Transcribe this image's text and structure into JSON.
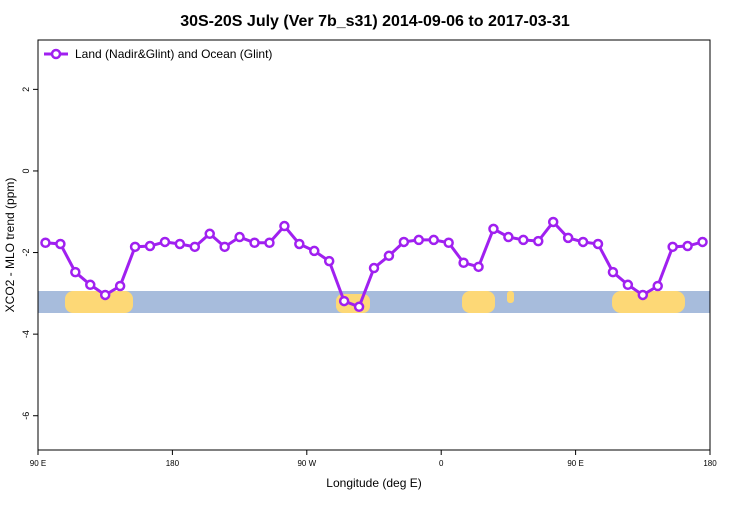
{
  "chart_data": {
    "type": "line",
    "title": "30S-20S July (Ver 7b_s31)   2014-09-06 to 2017-03-31",
    "x_label": "Longitude (deg E)",
    "y_label": "XCO2 - MLO trend (ppm)",
    "x": [
      95,
      105,
      115,
      125,
      135,
      145,
      155,
      165,
      175,
      185,
      195,
      205,
      215,
      225,
      235,
      245,
      255,
      265,
      275,
      285,
      295,
      305,
      315,
      325,
      335,
      345,
      355,
      365,
      375,
      385,
      395,
      405,
      415,
      425,
      435,
      445,
      455,
      465,
      475,
      485,
      495,
      505,
      515,
      525,
      535
    ],
    "series": [
      {
        "name": "Land (Nadir&Glint) and Ocean (Glint)",
        "color": "#a020f0",
        "values": [
          -1.76,
          -1.79,
          -2.48,
          -2.79,
          -3.04,
          -2.82,
          -1.86,
          -1.84,
          -1.74,
          -1.79,
          -1.86,
          -1.54,
          -1.86,
          -1.62,
          -1.76,
          -1.76,
          -1.35,
          -1.79,
          -1.96,
          -2.21,
          -3.19,
          -3.33,
          -2.38,
          -2.08,
          -1.74,
          -1.69,
          -1.69,
          -1.76,
          -2.25,
          -2.35,
          -1.42,
          -1.62,
          -1.69,
          -1.72,
          -1.25,
          -1.64,
          -1.74,
          -1.79,
          -2.48,
          -2.79,
          -3.04,
          -2.82,
          -1.86,
          -1.84,
          -1.74
        ]
      }
    ],
    "xlim": [
      90,
      540
    ],
    "xticks": [
      {
        "value": 90,
        "label": "90 E"
      },
      {
        "value": 180,
        "label": "180"
      },
      {
        "value": 270,
        "label": "90 W"
      },
      {
        "value": 360,
        "label": "0"
      },
      {
        "value": 450,
        "label": "90 E"
      },
      {
        "value": 540,
        "label": "180"
      }
    ],
    "ylim": [
      -6.84,
      3.21
    ],
    "yticks": [
      2,
      0,
      -2,
      -4,
      -6
    ],
    "legend": "top-left"
  }
}
